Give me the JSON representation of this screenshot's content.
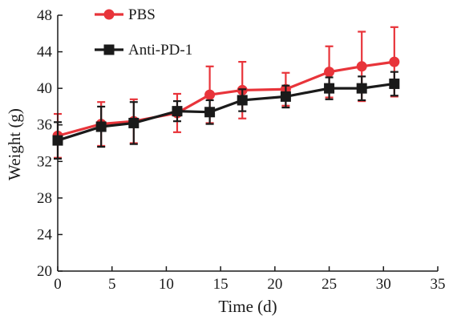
{
  "chart_data": {
    "type": "line",
    "xlabel": "Time (d)",
    "ylabel": "Weight (g)",
    "xlim": [
      0,
      35
    ],
    "ylim": [
      20,
      48
    ],
    "xticks": [
      0,
      5,
      10,
      15,
      20,
      25,
      30,
      35
    ],
    "yticks": [
      20,
      24,
      28,
      32,
      36,
      40,
      44,
      48
    ],
    "grid": false,
    "legend_position": "top-left",
    "series": [
      {
        "name": "PBS",
        "color": "#e8343a",
        "marker": "circle",
        "x": [
          0,
          4,
          7,
          11,
          14,
          17,
          21,
          25,
          28,
          31
        ],
        "y": [
          34.8,
          36.1,
          36.4,
          37.3,
          39.3,
          39.8,
          39.9,
          41.8,
          42.4,
          42.9
        ],
        "error": [
          2.4,
          2.4,
          2.4,
          2.1,
          3.1,
          3.1,
          1.8,
          2.8,
          3.8,
          3.8
        ]
      },
      {
        "name": "Anti-PD-1",
        "color": "#1a1a1a",
        "marker": "square",
        "x": [
          0,
          4,
          7,
          11,
          14,
          17,
          21,
          25,
          28,
          31
        ],
        "y": [
          34.3,
          35.8,
          36.2,
          37.5,
          37.4,
          38.7,
          39.1,
          40.0,
          40.0,
          40.5
        ],
        "error": [
          2.0,
          2.2,
          2.3,
          1.1,
          1.3,
          1.2,
          1.2,
          1.2,
          1.3,
          1.3
        ]
      }
    ]
  }
}
